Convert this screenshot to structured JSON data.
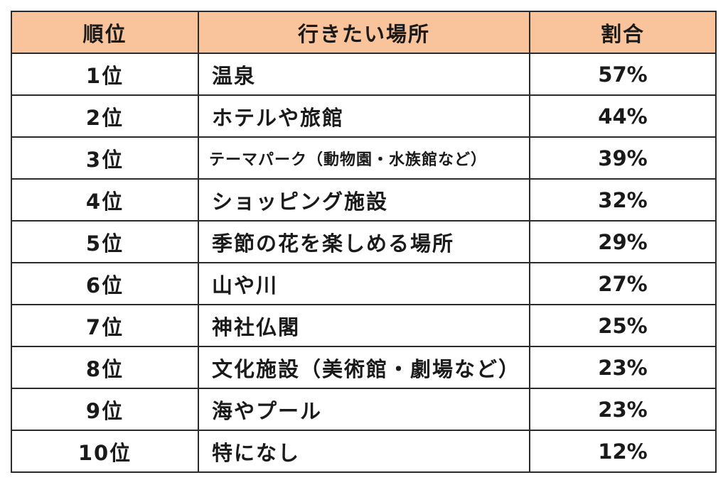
{
  "table": {
    "headers": {
      "rank": "順位",
      "place": "行きたい場所",
      "ratio": "割合"
    },
    "rows": [
      {
        "rank": "1位",
        "place": "温泉",
        "ratio": "57%"
      },
      {
        "rank": "2位",
        "place": "ホテルや旅館",
        "ratio": "44%"
      },
      {
        "rank": "3位",
        "place": "テーマパーク（動物園・水族館など）",
        "ratio": "39%"
      },
      {
        "rank": "4位",
        "place": "ショッピング施設",
        "ratio": "32%"
      },
      {
        "rank": "5位",
        "place": "季節の花を楽しめる場所",
        "ratio": "29%"
      },
      {
        "rank": "6位",
        "place": "山や川",
        "ratio": "27%"
      },
      {
        "rank": "7位",
        "place": "神社仏閣",
        "ratio": "25%"
      },
      {
        "rank": "8位",
        "place": "文化施設（美術館・劇場など）",
        "ratio": "23%"
      },
      {
        "rank": "9位",
        "place": "海やプール",
        "ratio": "23%"
      },
      {
        "rank": "10位",
        "place": "特になし",
        "ratio": "12%"
      }
    ]
  },
  "colors": {
    "header_background": "#f9c49b",
    "border": "#2b2b2b"
  }
}
